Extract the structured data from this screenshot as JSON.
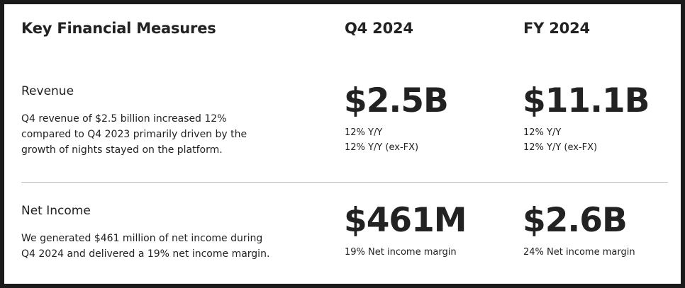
{
  "header": {
    "title": "Key Financial Measures",
    "col_q4": "Q4 2024",
    "col_fy": "FY 2024"
  },
  "revenue": {
    "title": "Revenue",
    "description": "Q4 revenue of $2.5 billion increased 12% compared to Q4 2023 primarily driven by the growth of nights stayed on the platform.",
    "q4": {
      "value": "$2.5B",
      "lines": [
        "12% Y/Y",
        "12% Y/Y (ex-FX)"
      ]
    },
    "fy": {
      "value": "$11.1B",
      "lines": [
        "12% Y/Y",
        "12% Y/Y (ex-FX)"
      ]
    }
  },
  "net_income": {
    "title": "Net Income",
    "description": "We generated $461 million of net income during Q4 2024 and delivered a 19% net income margin.",
    "q4": {
      "value": "$461M",
      "lines": [
        "19% Net income margin"
      ]
    },
    "fy": {
      "value": "$2.6B",
      "lines": [
        "24% Net income margin"
      ]
    }
  }
}
